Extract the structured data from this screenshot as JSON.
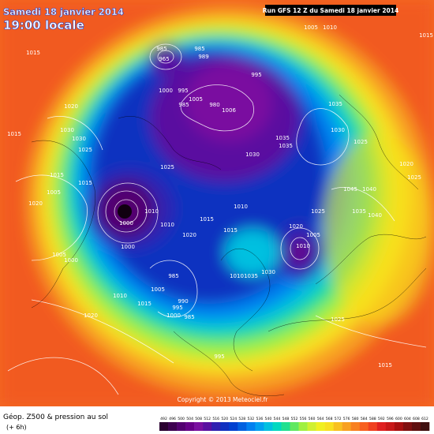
{
  "header": {
    "date": "Samedi 18 janvier 2014",
    "time": "19:00 locale",
    "run": "Run GFS 12 Z du Samedi 18 janvier 2014"
  },
  "copyright": "Copyright © 2013 Meteociel.fr",
  "caption": {
    "title": "Géop. Z500 & pression au sol",
    "lead": "(+ 6h)"
  },
  "isobar_labels": [
    985,
    965,
    985,
    989,
    995,
    1000,
    995,
    985,
    1005,
    980,
    1006,
    1005,
    1010,
    1015,
    1020,
    1015,
    1030,
    1030,
    1025,
    1035,
    1030,
    1035,
    1035,
    1030,
    1025,
    1025,
    1020,
    1025,
    1015,
    1005,
    1020,
    1015,
    1010,
    1010,
    1000,
    1000,
    1015,
    1010,
    1015,
    1020,
    1025,
    1020,
    1005,
    1010,
    1045,
    1040,
    1035,
    1040,
    1005,
    1000,
    1010,
    1035,
    1030,
    985,
    1005,
    990,
    995,
    985,
    1000,
    1015,
    1010,
    1020,
    995,
    1025,
    1015,
    1015
  ],
  "scale": {
    "values": [
      492,
      496,
      500,
      504,
      508,
      512,
      516,
      520,
      524,
      528,
      532,
      536,
      540,
      544,
      548,
      552,
      556,
      560,
      564,
      568,
      572,
      576,
      580,
      584,
      588,
      592,
      596,
      600,
      604,
      608,
      612
    ],
    "colors": [
      "#2a0030",
      "#3d0050",
      "#520070",
      "#660088",
      "#7a10a0",
      "#5a10a0",
      "#3020b0",
      "#1030c0",
      "#0040d0",
      "#0060e0",
      "#0080f0",
      "#00a0f0",
      "#00c0e0",
      "#00d8c0",
      "#20e090",
      "#60e860",
      "#a0f040",
      "#d0f030",
      "#f0f020",
      "#f8e020",
      "#f8c020",
      "#f8a020",
      "#f88020",
      "#f86020",
      "#f04020",
      "#e02020",
      "#c81818",
      "#a81010",
      "#801010",
      "#601010",
      "#401010"
    ]
  }
}
